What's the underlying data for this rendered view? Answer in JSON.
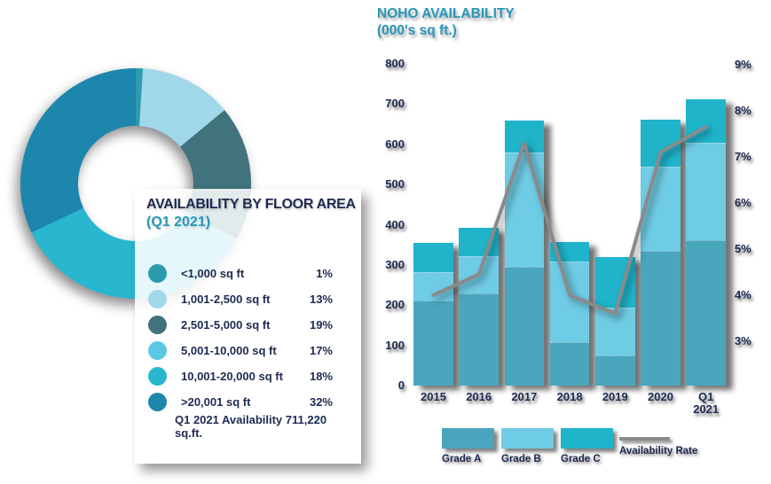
{
  "colors": {
    "navy_text": "#1e2a52",
    "teal_heading": "#2897b8",
    "grade_a": "#4aa6bc",
    "grade_b": "#6fcce5",
    "grade_c": "#1fb4ca",
    "rate_line": "#8a8a8a"
  },
  "floor_area_panel": {
    "title": "AVAILABILITY BY FLOOR AREA",
    "subtitle": "(Q1 2021)",
    "footer": "Q1 2021 Availability 711,220 sq.ft."
  },
  "noho_chart": {
    "title_line1": "NOHO AVAILABILITY",
    "title_line2": "(000's sq ft.)"
  },
  "chart_data": [
    {
      "type": "pie",
      "donut": true,
      "title": "AVAILABILITY BY FLOOR AREA (Q1 2021)",
      "start_angle_deg": 0,
      "direction": "clockwise",
      "labels": [
        "<1,000 sq ft",
        "1,001-2,500 sq ft",
        "2,501-5,000 sq ft",
        "5,001-10,000 sq ft",
        "10,001-20,000 sq ft",
        ">20,001 sq ft"
      ],
      "values_pct": [
        1,
        13,
        19,
        17,
        18,
        32
      ],
      "colors": [
        "#2b9cae",
        "#a0d8ea",
        "#40737c",
        "#5ac8e2",
        "#29b6cf",
        "#1d86ac"
      ],
      "annotation": "Q1 2021 Availability 711,220 sq.ft."
    },
    {
      "type": "bar",
      "stacked": true,
      "title": "NOHO AVAILABILITY (000's sq ft.)",
      "categories": [
        "2015",
        "2016",
        "2017",
        "2018",
        "2019",
        "2020",
        "Q1 2021"
      ],
      "series": [
        {
          "name": "Grade A",
          "values": [
            212,
            230,
            295,
            107,
            74,
            335,
            362
          ],
          "color": "#4aa6bc"
        },
        {
          "name": "Grade B",
          "values": [
            70,
            92,
            285,
            200,
            118,
            208,
            242
          ],
          "color": "#6fcce5"
        },
        {
          "name": "Grade C",
          "values": [
            72,
            71,
            79,
            50,
            128,
            118,
            107
          ],
          "color": "#1fb4ca"
        }
      ],
      "line_series": {
        "name": "Availability Rate",
        "values_pct": [
          4.0,
          4.45,
          7.3,
          4.0,
          3.6,
          7.1,
          7.65
        ],
        "color": "#8a8a8a"
      },
      "left_axis": {
        "min": 0,
        "max": 800,
        "step": 100
      },
      "right_axis": {
        "min": 3,
        "max": 9,
        "step": 1,
        "suffix": "%"
      },
      "grid": false,
      "legend_position": "bottom"
    }
  ]
}
